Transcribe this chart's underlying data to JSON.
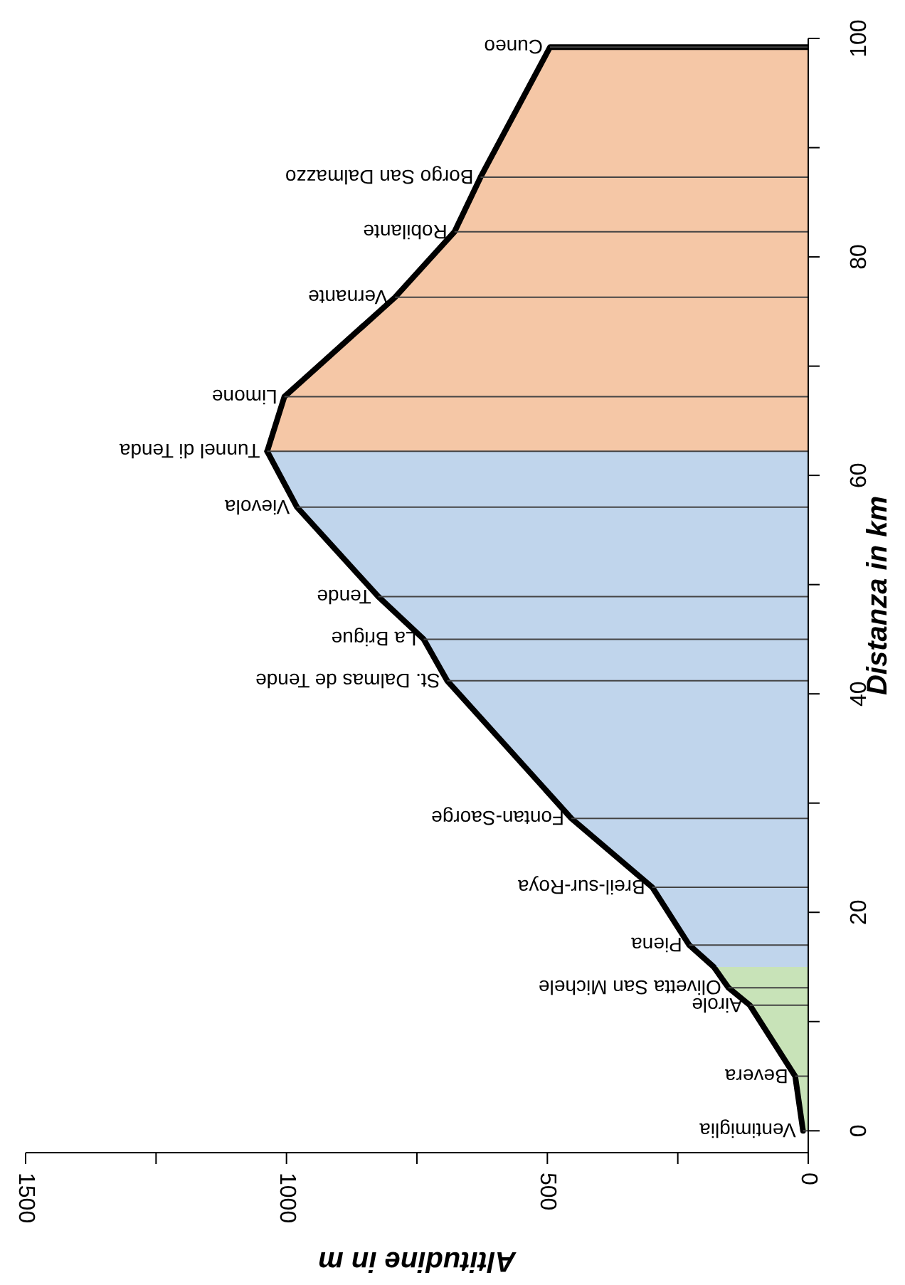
{
  "chart_data": {
    "type": "area",
    "orientation": "horizontal",
    "xlabel": "Altitudine in m",
    "ylabel": "Distanza in km",
    "ylim": [
      -2,
      100
    ],
    "yticks": [
      0,
      {
        "value": 10,
        "label": null
      },
      20,
      {
        "value": 30,
        "label": null
      },
      40,
      {
        "value": 50,
        "label": null
      },
      60,
      {
        "value": 70,
        "label": null
      },
      80,
      {
        "value": 90,
        "label": null
      },
      100
    ],
    "xlim": [
      1500,
      0
    ],
    "xticks": [
      0,
      {
        "value": 250,
        "label": null
      },
      500,
      {
        "value": 750,
        "label": null
      },
      1000,
      {
        "value": 1250,
        "label": null
      },
      1500
    ],
    "series": [
      {
        "color": "#c8e3b8",
        "x": [
          0,
          5,
          11.5,
          13.1,
          15
        ],
        "values": [
          10,
          25,
          112,
          153,
          181
        ]
      },
      {
        "color": "#c0d5ec",
        "x": [
          15,
          17,
          22.3,
          28.6,
          41.2,
          45,
          48.9,
          57.1,
          62.2
        ],
        "values": [
          181,
          228,
          299,
          454,
          692,
          737,
          824,
          980,
          1037
        ]
      },
      {
        "color": "#f5c7a6",
        "x": [
          62.2,
          67.2,
          76.3,
          82.3,
          87.3,
          99.2,
          99.2
        ],
        "values": [
          1037,
          1004,
          792,
          678,
          628,
          495,
          0
        ]
      }
    ],
    "annotations": [
      {
        "text": "Ventimiglia",
        "x": 10,
        "y": 0
      },
      {
        "text": "Bevera",
        "x": 25,
        "y": 5
      },
      {
        "text": "Airole",
        "x": 112,
        "y": 11.5
      },
      {
        "text": "Olivetta San Michele",
        "x": 153,
        "y": 13.1
      },
      {
        "text": "Piena",
        "x": 228,
        "y": 17
      },
      {
        "text": "Breil-sur-Roya",
        "x": 299,
        "y": 22.3
      },
      {
        "text": "Fontan-Saorge",
        "x": 454,
        "y": 28.6
      },
      {
        "text": "St. Dalmas de Tende",
        "x": 692,
        "y": 41.2
      },
      {
        "text": "La Brigue",
        "x": 737,
        "y": 45
      },
      {
        "text": "Tende",
        "x": 824,
        "y": 48.9
      },
      {
        "text": "Vievola",
        "x": 980,
        "y": 57.1
      },
      {
        "text": "Tunnel di Tenda",
        "x": 1037,
        "y": 62.2
      },
      {
        "text": "Limone",
        "x": 1004,
        "y": 67.2
      },
      {
        "text": "Vernante",
        "x": 792,
        "y": 76.3
      },
      {
        "text": "Robilante",
        "x": 678,
        "y": 82.3
      },
      {
        "text": "Borgo San Dalmazzo",
        "x": 628,
        "y": 87.3
      },
      {
        "text": "Cuneo",
        "x": 495,
        "y": 99.2
      }
    ]
  }
}
